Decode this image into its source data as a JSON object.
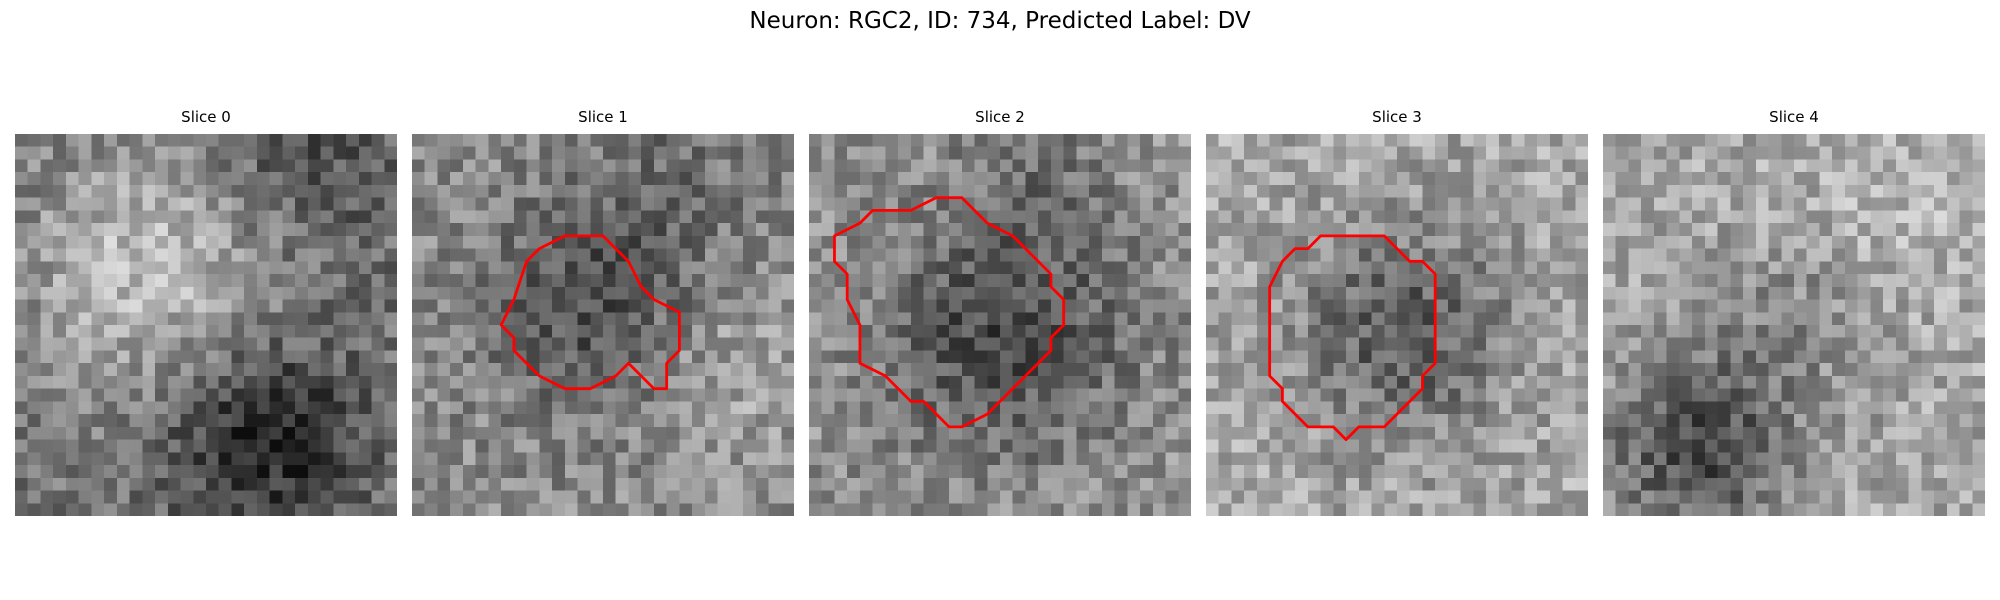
{
  "figure": {
    "title": "Neuron: RGC2, ID: 734, Predicted Label: DV"
  },
  "panels": [
    {
      "title": "Slice 0",
      "contour": false,
      "pattern": "bright_top_dark_bottom_right",
      "seed": 11
    },
    {
      "title": "Slice 1",
      "contour": true,
      "pattern": "dark_center",
      "seed": 23
    },
    {
      "title": "Slice 2",
      "contour": true,
      "pattern": "dark_center_large",
      "seed": 37
    },
    {
      "title": "Slice 3",
      "contour": true,
      "pattern": "dark_center_light_bg",
      "seed": 41
    },
    {
      "title": "Slice 4",
      "contour": false,
      "pattern": "dark_bottom_left",
      "seed": 53
    }
  ],
  "colors": {
    "contour": "#ff0000",
    "background": "#ffffff"
  }
}
